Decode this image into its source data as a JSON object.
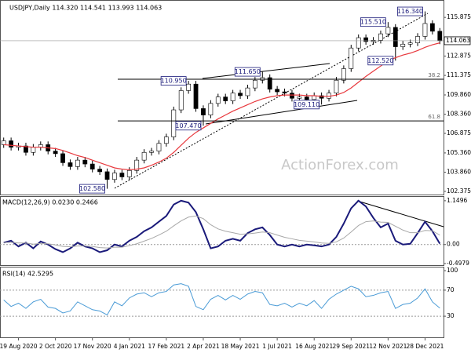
{
  "chart_data": [
    {
      "type": "candlestick",
      "title": "USDJPY,Daily  114.320 114.541 113.993 114.063",
      "watermark": "ActionForex.com",
      "categories": [
        null,
        null,
        "19 Aug 2020",
        null,
        null,
        null,
        null,
        "2 Oct 2020",
        null,
        null,
        null,
        null,
        "17 Nov 2020",
        null,
        null,
        null,
        null,
        "4 Jan 2021",
        null,
        null,
        null,
        null,
        "17 Feb 2021",
        null,
        null,
        null,
        null,
        "2 Apr 2021",
        null,
        null,
        null,
        null,
        "18 May 2021",
        null,
        null,
        null,
        null,
        "1 Jul 2021",
        null,
        null,
        null,
        null,
        "16 Aug 2021",
        null,
        null,
        null,
        null,
        "29 Sep 2021",
        null,
        null,
        null,
        null,
        "12 Nov 2021",
        null,
        null,
        null,
        null,
        "28 Dec 2021",
        null,
        null
      ],
      "open": [
        106.0,
        106.3,
        105.8,
        105.9,
        105.4,
        105.8,
        106.0,
        105.5,
        105.3,
        104.6,
        104.3,
        104.8,
        104.5,
        104.1,
        103.9,
        103.3,
        103.8,
        103.5,
        104.0,
        104.8,
        105.4,
        105.5,
        106.1,
        106.6,
        108.7,
        110.2,
        110.7,
        108.8,
        108.3,
        109.2,
        109.7,
        109.4,
        110.0,
        109.8,
        110.4,
        111.0,
        111.2,
        110.3,
        110.1,
        110.0,
        109.6,
        109.7,
        109.5,
        109.8,
        109.6,
        110.0,
        111.0,
        111.9,
        113.5,
        114.3,
        114.0,
        114.1,
        114.6,
        115.1,
        113.6,
        113.8,
        113.9,
        114.4,
        115.4,
        114.8
      ],
      "high": [
        106.55,
        106.55,
        106.15,
        106.15,
        106.05,
        106.25,
        106.25,
        105.75,
        105.55,
        104.85,
        105.05,
        105.05,
        104.75,
        104.35,
        104.15,
        104.05,
        104.05,
        104.25,
        105.05,
        105.65,
        105.75,
        106.35,
        106.85,
        108.95,
        110.45,
        110.95,
        110.95,
        109.05,
        109.45,
        109.95,
        109.95,
        110.25,
        110.25,
        110.65,
        111.25,
        111.65,
        111.45,
        110.55,
        110.35,
        110.25,
        109.95,
        109.95,
        110.05,
        110.05,
        110.25,
        111.25,
        112.15,
        113.75,
        114.55,
        114.55,
        114.35,
        114.85,
        115.51,
        115.35,
        114.05,
        114.15,
        114.65,
        116.34,
        115.65,
        115.05
      ],
      "low": [
        105.75,
        105.55,
        105.55,
        105.15,
        105.15,
        105.55,
        105.25,
        105.05,
        104.35,
        104.05,
        104.05,
        104.25,
        103.85,
        103.65,
        102.58,
        103.05,
        103.25,
        103.25,
        103.75,
        104.55,
        105.15,
        105.25,
        105.85,
        106.35,
        108.45,
        109.95,
        108.55,
        107.47,
        108.05,
        108.95,
        109.15,
        109.15,
        109.55,
        109.55,
        110.15,
        110.75,
        110.05,
        109.85,
        109.75,
        109.35,
        109.35,
        109.25,
        109.25,
        109.11,
        109.35,
        109.75,
        110.75,
        111.65,
        113.25,
        113.75,
        113.75,
        113.85,
        114.35,
        112.52,
        113.35,
        113.55,
        113.65,
        114.15,
        114.55,
        113.8
      ],
      "close": [
        106.3,
        105.8,
        105.9,
        105.4,
        105.8,
        106.0,
        105.5,
        105.3,
        104.6,
        104.3,
        104.8,
        104.5,
        104.1,
        103.9,
        103.3,
        103.8,
        103.5,
        104.0,
        104.8,
        105.4,
        105.5,
        106.1,
        106.6,
        108.7,
        110.2,
        110.7,
        108.8,
        108.3,
        109.2,
        109.7,
        109.4,
        110.0,
        109.8,
        110.4,
        111.0,
        111.2,
        110.3,
        110.1,
        110.0,
        109.6,
        109.7,
        109.5,
        109.8,
        109.6,
        110.0,
        111.0,
        111.9,
        113.5,
        114.3,
        114.0,
        114.1,
        114.6,
        115.1,
        113.6,
        113.8,
        113.9,
        114.4,
        115.4,
        114.8,
        114.063
      ],
      "up_color": "#ffffff",
      "down_color": "#000000",
      "moving_average": {
        "color": "#e8383d",
        "values": [
          106.0,
          105.95,
          105.9,
          105.85,
          105.8,
          105.8,
          105.75,
          105.7,
          105.55,
          105.35,
          105.15,
          105.0,
          104.8,
          104.6,
          104.4,
          104.2,
          104.1,
          104.05,
          104.1,
          104.2,
          104.4,
          104.65,
          104.95,
          105.4,
          105.95,
          106.5,
          106.95,
          107.3,
          107.65,
          108.0,
          108.3,
          108.6,
          108.85,
          109.1,
          109.35,
          109.55,
          109.7,
          109.8,
          109.85,
          109.85,
          109.85,
          109.8,
          109.8,
          109.75,
          109.75,
          109.85,
          110.05,
          110.4,
          110.85,
          111.3,
          111.7,
          112.1,
          112.5,
          112.75,
          112.95,
          113.1,
          113.3,
          113.55,
          113.75,
          113.9
        ]
      },
      "ylim": [
        102.13,
        116.92
      ],
      "yticks": [
        115.875,
        112.875,
        111.375,
        {
          "value": 109.86,
          "label": "109.860"
        },
        {
          "value": 108.36,
          "label": "108.360"
        },
        106.875,
        {
          "value": 105.36,
          "label": "105.360"
        },
        {
          "value": 103.86,
          "label": "103.860"
        },
        102.375
      ],
      "last_price": {
        "value": 114.063,
        "label": "114.063"
      },
      "fib_levels": [
        {
          "level": 38.2,
          "value": 111.08
        },
        {
          "level": 61.8,
          "value": 107.84
        }
      ],
      "annotations": [
        {
          "value": 116.34,
          "label": "116.340"
        },
        {
          "value": 115.51,
          "label": "115.510"
        },
        {
          "value": 112.52,
          "label": "112.520"
        },
        {
          "value": 111.65,
          "label": "111.650"
        },
        {
          "value": 110.95,
          "label": "110.950"
        },
        {
          "value": 109.11,
          "label": "109.110"
        },
        {
          "value": 107.47,
          "label": "107.470"
        },
        {
          "value": 102.58,
          "label": "102.580"
        }
      ]
    },
    {
      "type": "line",
      "title": "MACD(12,26,9) 0.0230 0.2466",
      "series": [
        {
          "color": "#1a1a7a",
          "width": 2,
          "values": [
            0.05,
            0.1,
            -0.05,
            0.05,
            -0.1,
            0.08,
            0.0,
            -0.12,
            -0.2,
            -0.1,
            0.05,
            -0.05,
            -0.1,
            -0.2,
            -0.15,
            0.0,
            -0.05,
            0.1,
            0.2,
            0.35,
            0.45,
            0.6,
            0.75,
            1.05,
            1.15,
            1.1,
            0.85,
            0.4,
            -0.1,
            -0.05,
            0.1,
            0.15,
            0.1,
            0.3,
            0.4,
            0.45,
            0.25,
            0.0,
            -0.05,
            0.0,
            -0.05,
            0.0,
            -0.02,
            -0.05,
            0.0,
            0.2,
            0.55,
            0.95,
            1.15,
            1.0,
            0.7,
            0.45,
            0.55,
            0.1,
            0.0,
            0.02,
            0.3,
            0.6,
            0.35,
            0.023
          ]
        },
        {
          "color": "#a8a8a8",
          "width": 1,
          "values": [
            0.05,
            0.06,
            0.04,
            0.04,
            0.01,
            0.03,
            0.02,
            -0.01,
            -0.05,
            -0.06,
            -0.04,
            -0.04,
            -0.05,
            -0.08,
            -0.09,
            -0.07,
            -0.07,
            -0.03,
            0.02,
            0.09,
            0.16,
            0.25,
            0.35,
            0.49,
            0.62,
            0.72,
            0.75,
            0.68,
            0.52,
            0.41,
            0.35,
            0.31,
            0.27,
            0.28,
            0.3,
            0.33,
            0.31,
            0.25,
            0.19,
            0.15,
            0.11,
            0.09,
            0.07,
            0.04,
            0.03,
            0.07,
            0.17,
            0.33,
            0.5,
            0.6,
            0.62,
            0.59,
            0.58,
            0.48,
            0.38,
            0.31,
            0.31,
            0.37,
            0.36,
            0.2466
          ]
        }
      ],
      "ylim": [
        -0.52,
        1.25
      ],
      "yticks": [
        1.1496,
        {
          "value": 0,
          "label": "0.00"
        },
        -0.4979
      ],
      "reference_lines": [
        0
      ]
    },
    {
      "type": "line",
      "title": "RSI(14) 42.5295",
      "series": [
        {
          "color": "#4a9bd6",
          "width": 1,
          "values": [
            55,
            45,
            50,
            42,
            52,
            56,
            44,
            42,
            35,
            38,
            52,
            46,
            40,
            38,
            32,
            52,
            46,
            58,
            64,
            66,
            60,
            66,
            68,
            78,
            80,
            76,
            45,
            40,
            56,
            62,
            55,
            62,
            56,
            64,
            68,
            66,
            48,
            46,
            50,
            44,
            50,
            46,
            54,
            42,
            56,
            64,
            70,
            76,
            72,
            60,
            62,
            66,
            68,
            42,
            48,
            50,
            58,
            72,
            52,
            42.53
          ]
        }
      ],
      "ylim": [
        0,
        100
      ],
      "yticks": [
        100,
        70,
        30
      ],
      "reference_lines": [
        70,
        30
      ]
    }
  ]
}
